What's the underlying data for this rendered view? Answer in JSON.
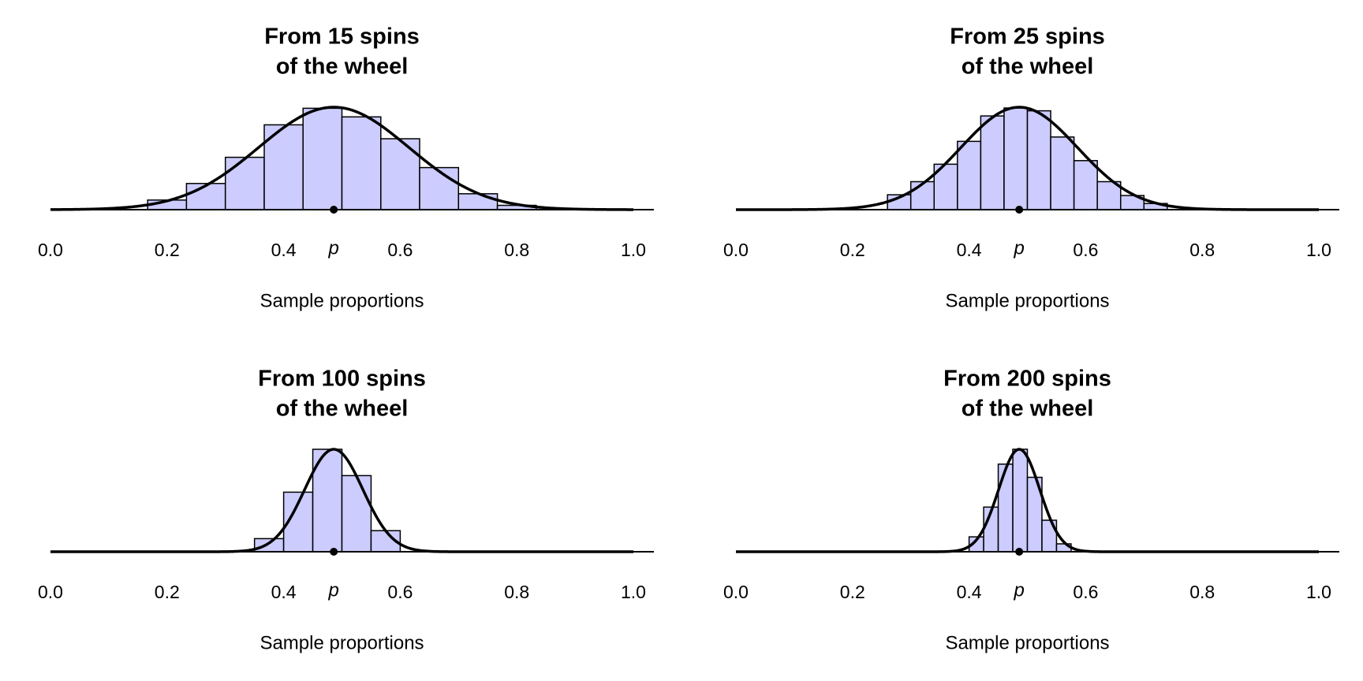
{
  "chart_data": [
    {
      "type": "histogram",
      "title": [
        "From 15 spins",
        "of the wheel"
      ],
      "xlabel": "Sample proportions",
      "bins": [
        0.1667,
        0.2333,
        0.3,
        0.3667,
        0.4333,
        0.5,
        0.5667,
        0.6333,
        0.7,
        0.7667,
        0.8333
      ],
      "values": [
        0.29,
        0.79,
        1.58,
        2.56,
        3.06,
        2.8,
        2.14,
        1.27,
        0.48,
        0.13
      ],
      "color": "#ccccff",
      "curve": {
        "mean": 0.486,
        "sd": 0.129
      },
      "annotation": {
        "label": "p",
        "x": 0.486
      },
      "xlim": [
        0,
        1
      ],
      "xticks": [
        {
          "value": 0,
          "label": "0.0"
        },
        0.2,
        0.4,
        {
          "value": 0.6,
          "label": "0.6"
        },
        0.8,
        {
          "value": 1,
          "label": "1.0"
        }
      ]
    },
    {
      "type": "histogram",
      "title": [
        "From 25 spins",
        "of the wheel"
      ],
      "xlabel": "Sample proportions",
      "bins": [
        0.26,
        0.3,
        0.34,
        0.38,
        0.42,
        0.46,
        0.5,
        0.54,
        0.58,
        0.62,
        0.66,
        0.7,
        0.74
      ],
      "values": [
        0.58,
        1.09,
        1.77,
        2.66,
        3.65,
        3.96,
        3.85,
        2.83,
        1.91,
        1.09,
        0.55,
        0.24
      ],
      "color": "#ccccff",
      "curve": {
        "mean": 0.486,
        "sd": 0.09996
      },
      "annotation": {
        "label": "p",
        "x": 0.486
      },
      "xlim": [
        0,
        1
      ],
      "xticks": [
        {
          "value": 0,
          "label": "0.0"
        },
        0.2,
        0.4,
        {
          "value": 0.6,
          "label": "0.6"
        },
        0.8,
        {
          "value": 1,
          "label": "1.0"
        }
      ]
    },
    {
      "type": "histogram",
      "title": [
        "From 100 spins",
        "of the wheel"
      ],
      "xlabel": "Sample proportions",
      "bins": [
        0.35,
        0.4,
        0.45,
        0.5,
        0.55,
        0.6
      ],
      "values": [
        1.02,
        4.64,
        7.98,
        5.93,
        1.64
      ],
      "color": "#ccccff",
      "curve": {
        "mean": 0.486,
        "sd": 0.04998
      },
      "annotation": {
        "label": "p",
        "x": 0.486
      },
      "xlim": [
        0,
        1
      ],
      "xticks": [
        {
          "value": 0,
          "label": "0.0"
        },
        0.2,
        0.4,
        {
          "value": 0.6,
          "label": "0.6"
        },
        0.8,
        {
          "value": 1,
          "label": "1.0"
        }
      ]
    },
    {
      "type": "histogram",
      "title": [
        "From 200 spins",
        "of the wheel"
      ],
      "xlabel": "Sample proportions",
      "bins": [
        0.4,
        0.425,
        0.45,
        0.475,
        0.5,
        0.525,
        0.55,
        0.575
      ],
      "values": [
        1.64,
        4.92,
        9.65,
        11.29,
        8.2,
        3.47,
        0.87
      ],
      "color": "#ccccff",
      "curve": {
        "mean": 0.486,
        "sd": 0.03534
      },
      "annotation": {
        "label": "p",
        "x": 0.486
      },
      "xlim": [
        0,
        1
      ],
      "xticks": [
        {
          "value": 0,
          "label": "0.0"
        },
        0.2,
        0.4,
        {
          "value": 0.6,
          "label": "0.6"
        },
        0.8,
        {
          "value": 1,
          "label": "1.0"
        }
      ]
    }
  ]
}
